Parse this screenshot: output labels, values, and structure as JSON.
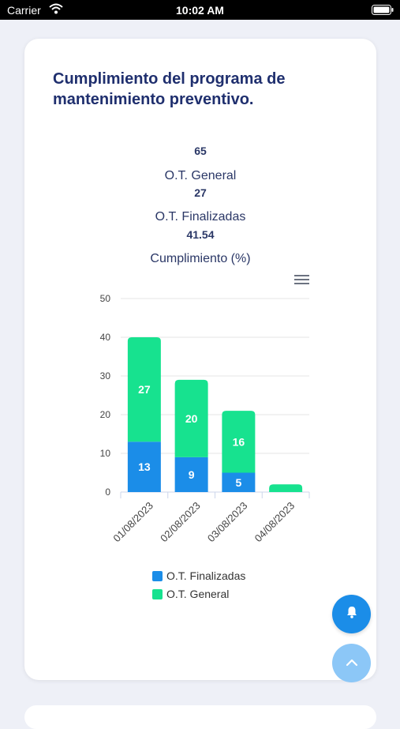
{
  "status_bar": {
    "carrier": "Carrier",
    "time": "10:02 AM"
  },
  "card": {
    "title": "Cumplimiento del programa de mantenimiento preventivo."
  },
  "summary": [
    {
      "value": "65",
      "label": "O.T. General"
    },
    {
      "value": "27",
      "label": "O.T. Finalizadas"
    },
    {
      "value": "41.54",
      "label": "Cumplimiento (%)"
    }
  ],
  "chart_data": {
    "type": "bar",
    "stacked": true,
    "categories": [
      "01/08/2023",
      "02/08/2023",
      "03/08/2023",
      "04/08/2023"
    ],
    "series": [
      {
        "name": "O.T. Finalizadas",
        "values": [
          13,
          9,
          5,
          0
        ],
        "color": "#1b8de8"
      },
      {
        "name": "O.T. General",
        "values": [
          27,
          20,
          16,
          2
        ],
        "color": "#17e28f"
      }
    ],
    "ylim": [
      0,
      50
    ],
    "yticks": [
      0,
      10,
      20,
      30,
      40,
      50
    ],
    "grid": true,
    "legend": "bottom"
  },
  "icons": {
    "menu": "hamburger-menu-icon",
    "bell": "bell-icon",
    "up": "chevron-up-icon"
  }
}
